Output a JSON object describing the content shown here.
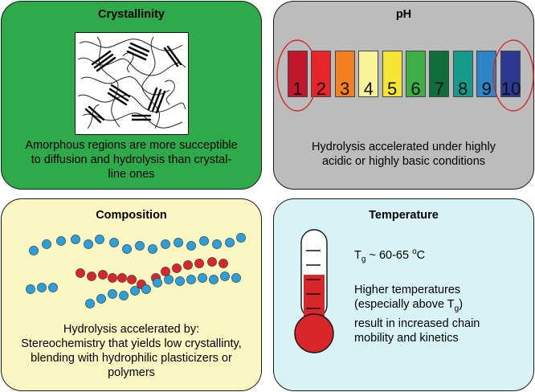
{
  "crystallinity": {
    "title": "Crystallinity",
    "description": [
      "Amorphous regions are more succeptible",
      "to diffusion and hydrolysis than crystal-",
      "line ones"
    ]
  },
  "ph": {
    "title": "pH",
    "scale": [
      {
        "label": "1",
        "color": "#c0172c"
      },
      {
        "label": "2",
        "color": "#e8262a"
      },
      {
        "label": "3",
        "color": "#f47f21"
      },
      {
        "label": "4",
        "color": "#fbf39a"
      },
      {
        "label": "5",
        "color": "#f6e634"
      },
      {
        "label": "6",
        "color": "#3fae49"
      },
      {
        "label": "7",
        "color": "#0d6e3c"
      },
      {
        "label": "8",
        "color": "#159a8c"
      },
      {
        "label": "9",
        "color": "#2d84c6"
      },
      {
        "label": "10",
        "color": "#2b3990"
      }
    ],
    "highlighted": [
      "1",
      "10"
    ],
    "description": [
      "Hydrolysis accelerated under highly",
      "acidic or highly basic conditions"
    ]
  },
  "composition": {
    "title": "Composition",
    "colors": {
      "chain_a": "#2b9fd9",
      "chain_b": "#d9262a"
    },
    "description": [
      "Hydrolysis accelerated by:",
      "Stereochemistry that yields low crystallinty,",
      "blending with hydrophilic plasticizers or",
      "polymers"
    ]
  },
  "temperature": {
    "title": "Temperature",
    "tg_symbol": "T",
    "tg_sub": "g",
    "tg_value": " ~ 60-65 ",
    "tg_unit_sup": "o",
    "tg_unit": "C",
    "desc_l1": "Higher temperatures",
    "desc_l2a": "(especially above T",
    "desc_l2sub": "g",
    "desc_l2b": ")",
    "desc_l3": "result in increased chain",
    "desc_l4": "mobility and kinetics",
    "colors": {
      "mercury": "#d9262a"
    }
  }
}
